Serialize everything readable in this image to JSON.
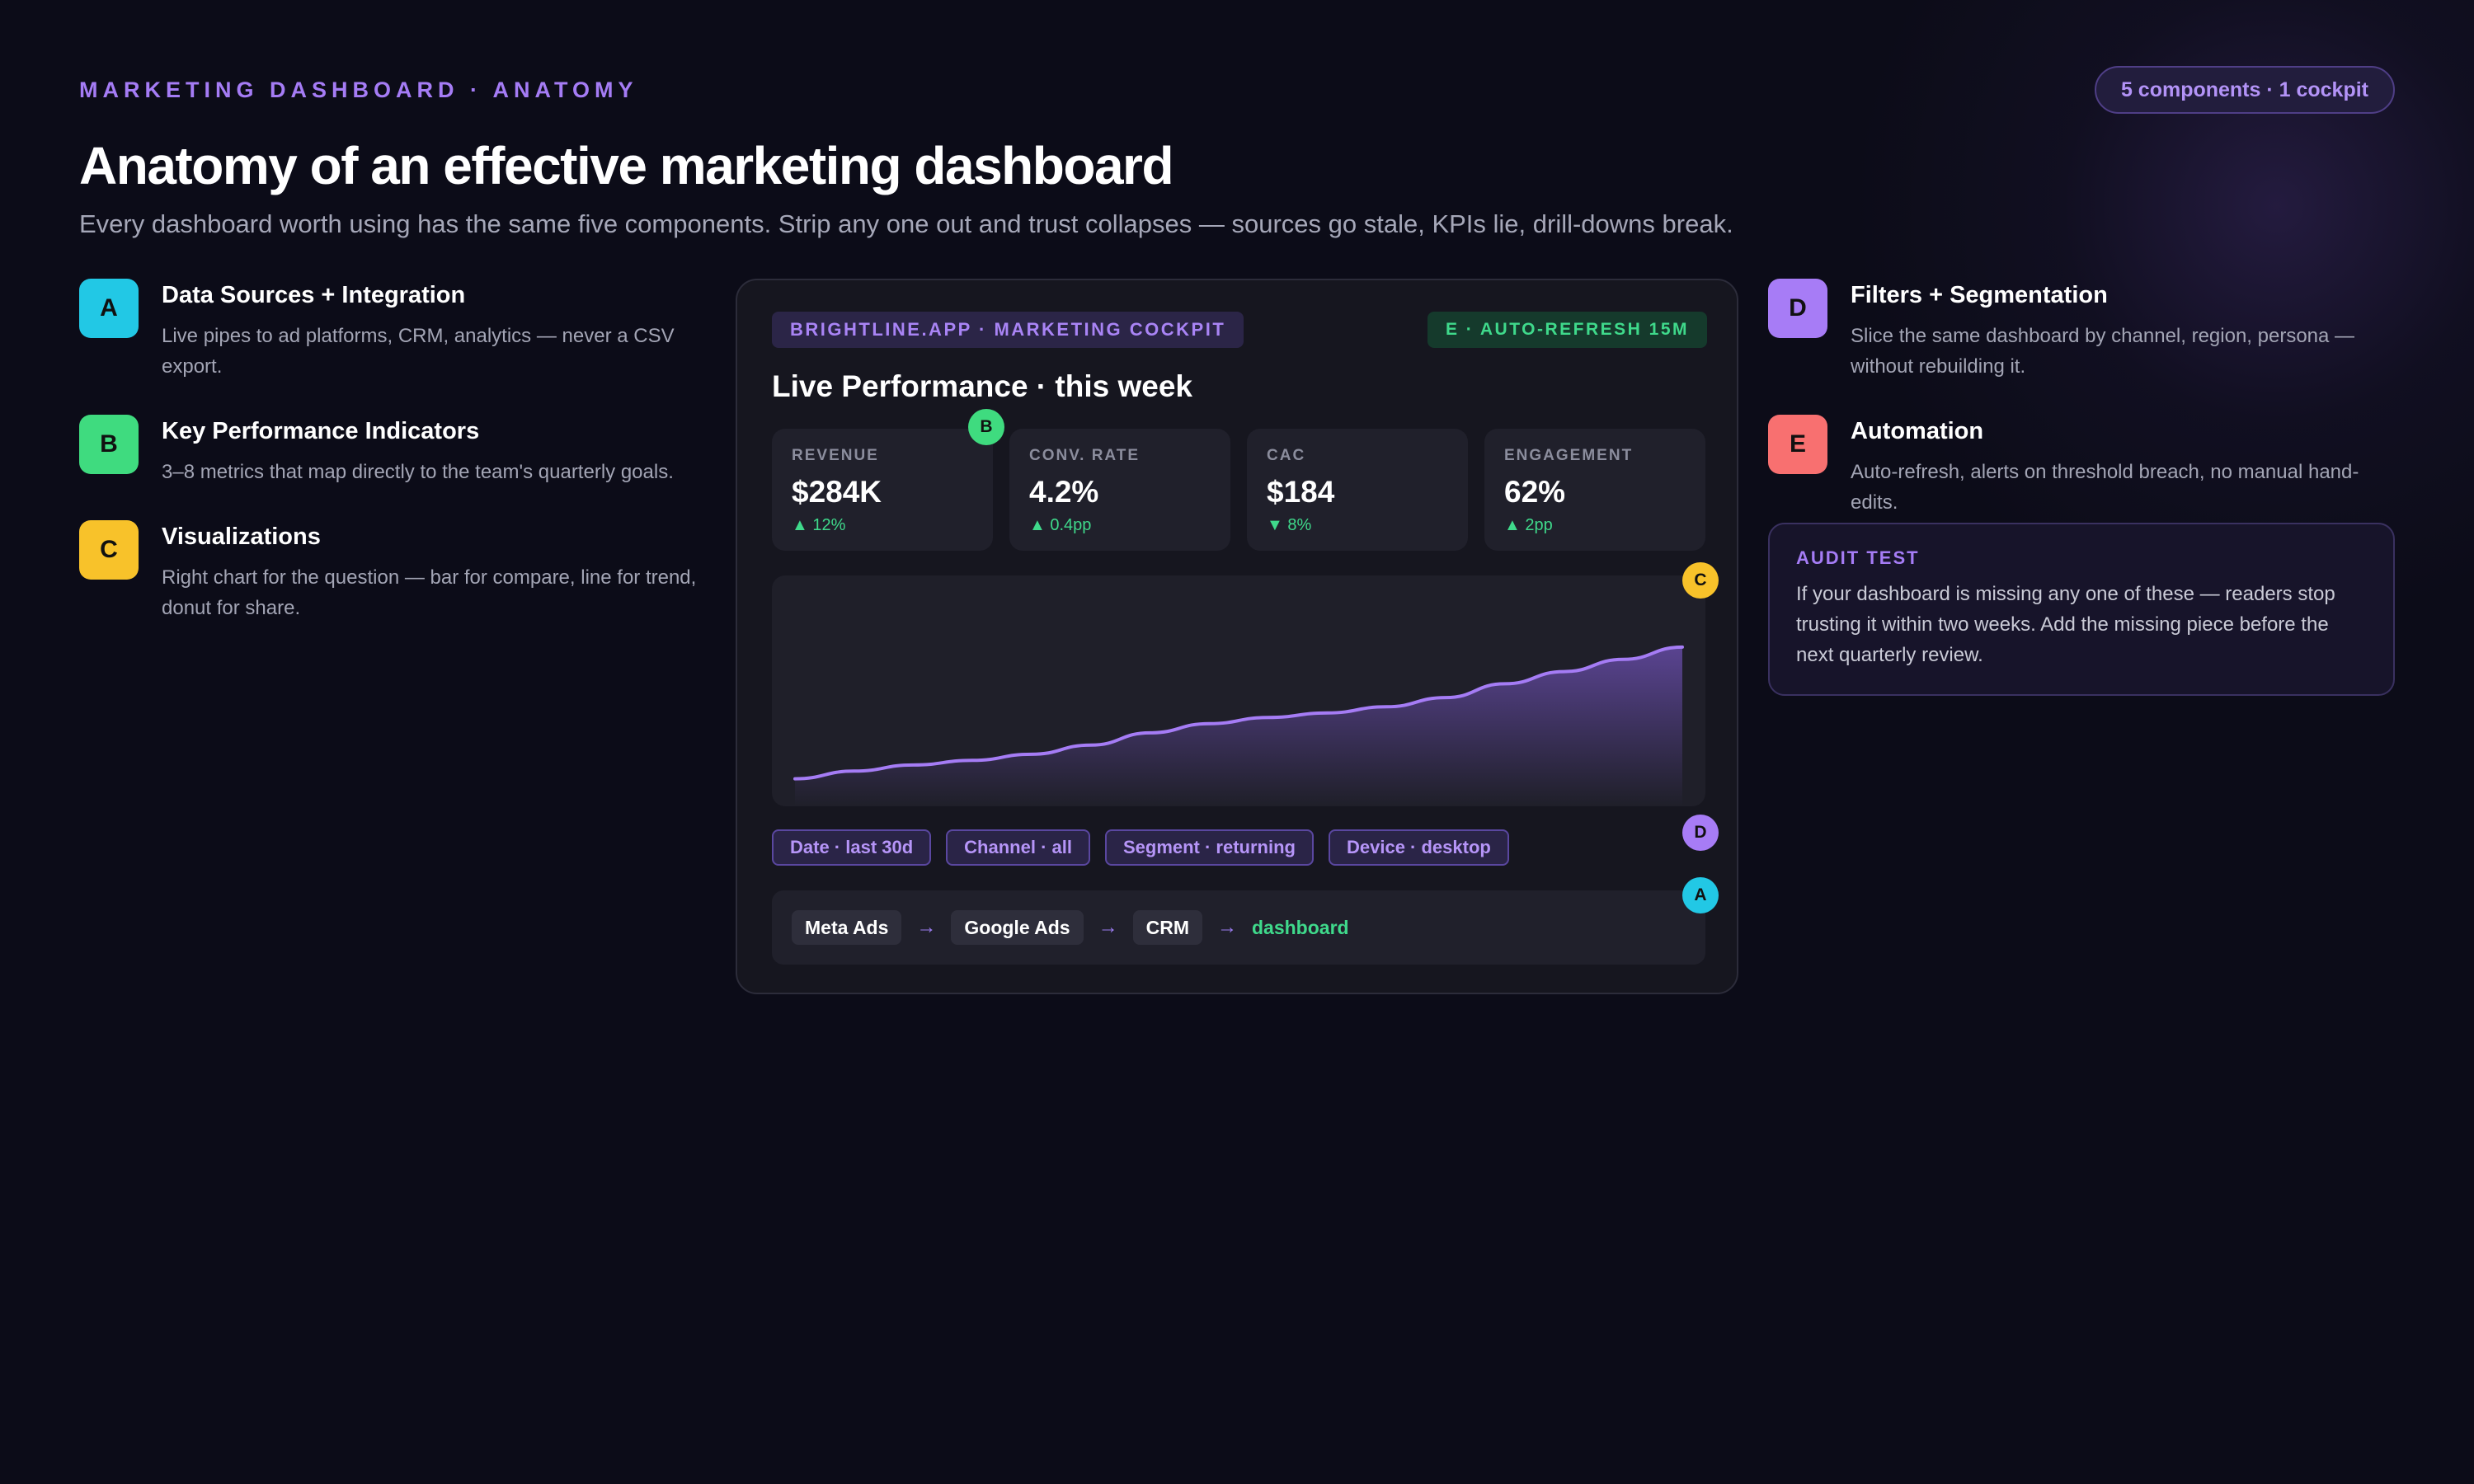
{
  "header": {
    "eyebrow": "MARKETING DASHBOARD · ANATOMY",
    "pill": "5 components · 1 cockpit",
    "title": "Anatomy of an effective marketing dashboard",
    "subtitle": "Every dashboard worth using has the same five components. Strip any one out and trust collapses — sources go stale, KPIs lie, drill-downs break."
  },
  "components_left": [
    {
      "letter": "A",
      "color": "#22c8e5",
      "title": "Data Sources + Integration",
      "desc": "Live pipes to ad platforms, CRM, analytics — never a CSV export."
    },
    {
      "letter": "B",
      "color": "#3fdb7f",
      "title": "Key Performance Indicators",
      "desc": "3–8 metrics that map directly to the team's quarterly goals."
    },
    {
      "letter": "C",
      "color": "#f8c22a",
      "title": "Visualizations",
      "desc": "Right chart for the question — bar for compare, line for trend, donut for share."
    }
  ],
  "components_right": [
    {
      "letter": "D",
      "color": "#a77cf6",
      "title": "Filters + Segmentation",
      "desc": "Slice the same dashboard by channel, region, persona — without rebuilding it."
    },
    {
      "letter": "E",
      "color": "#f87070",
      "title": "Automation",
      "desc": "Auto-refresh, alerts on threshold breach, no manual hand-edits."
    }
  ],
  "panel": {
    "app_label": "BRIGHTLINE.APP · MARKETING COCKPIT",
    "auto_refresh": "E · AUTO-REFRESH 15M",
    "title": "Live Performance · this week",
    "kpis": [
      {
        "label": "REVENUE",
        "value": "$284K",
        "delta": "▲ 12%"
      },
      {
        "label": "CONV. RATE",
        "value": "4.2%",
        "delta": "▲ 0.4pp"
      },
      {
        "label": "CAC",
        "value": "$184",
        "delta": "▼ 8%"
      },
      {
        "label": "ENGAGEMENT",
        "value": "62%",
        "delta": "▲ 2pp"
      }
    ],
    "filters": [
      "Date · last 30d",
      "Channel · all",
      "Segment · returning",
      "Device · desktop"
    ],
    "pipeline": {
      "sources": [
        "Meta Ads",
        "Google Ads",
        "CRM"
      ],
      "arrow": "→",
      "destination": "dashboard"
    },
    "markers": {
      "kpi": "B",
      "chart": "C",
      "filters": "D",
      "pipeline": "A"
    }
  },
  "chart_data": {
    "type": "area",
    "x": [
      0,
      1,
      2,
      3,
      4,
      5,
      6,
      7,
      8,
      9,
      10,
      11,
      12,
      13,
      14,
      15
    ],
    "values": [
      18,
      23,
      27,
      30,
      34,
      40,
      48,
      54,
      58,
      61,
      65,
      71,
      80,
      88,
      96,
      104
    ],
    "ylim": [
      0,
      140
    ],
    "title": "",
    "xlabel": "",
    "ylabel": "",
    "grid": false,
    "color": "#a57cf5"
  },
  "audit": {
    "label": "AUDIT TEST",
    "body": "If your dashboard is missing any one of these — readers stop trusting it within two weeks. Add the missing piece before the next quarterly review."
  }
}
